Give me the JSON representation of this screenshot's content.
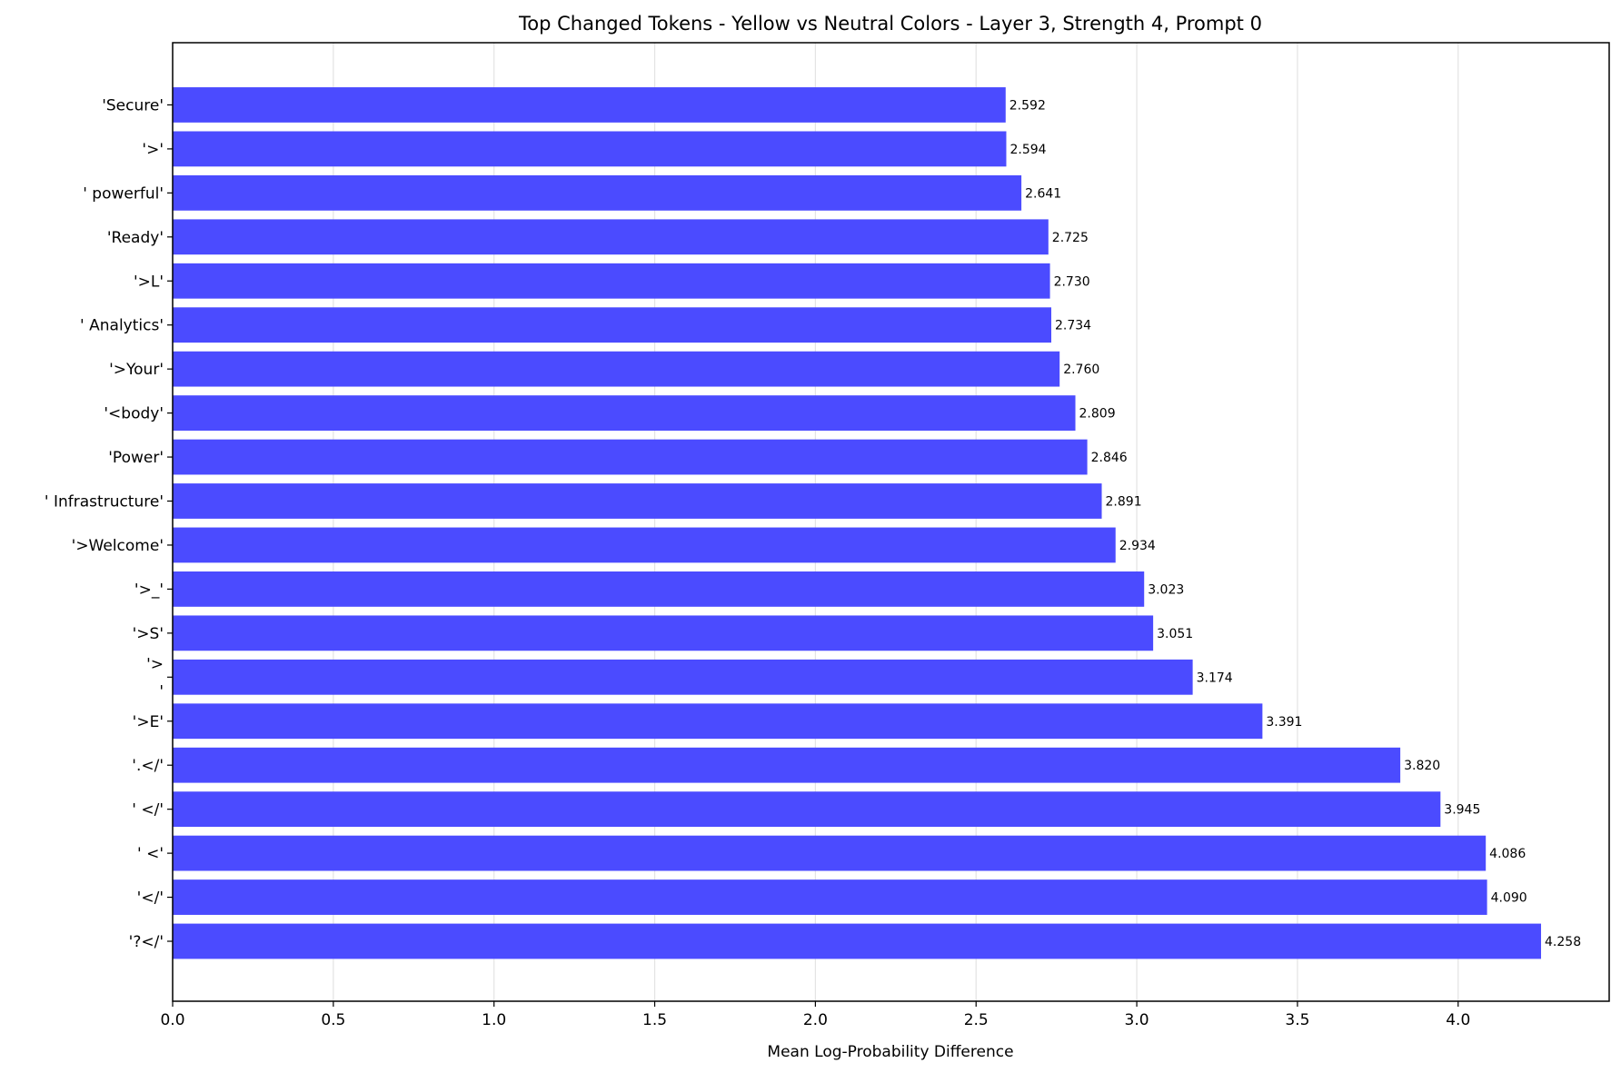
{
  "chart_data": {
    "type": "bar",
    "orientation": "horizontal",
    "title": "Top Changed Tokens - Yellow vs Neutral Colors - Layer 3, Strength 4, Prompt 0",
    "xlabel": "Mean Log-Probability Difference",
    "ylabel": "",
    "xlim": [
      0,
      4.47
    ],
    "xticks": [
      "0.0",
      "0.5",
      "1.0",
      "1.5",
      "2.0",
      "2.5",
      "3.0",
      "3.5",
      "4.0"
    ],
    "grid": "vertical",
    "bar_color": "#4b4bff",
    "categories": [
      "'?</'",
      "'</'",
      "' <'",
      "' </'",
      "'.</'",
      "'>E'",
      "'>\n'",
      "'>S'",
      "'>_'",
      "'>Welcome'",
      "' Infrastructure'",
      "'Power'",
      "'<body'",
      "'>Your'",
      "' Analytics'",
      "'>L'",
      "'Ready'",
      "' powerful'",
      "'>'",
      "'Secure'"
    ],
    "values": [
      4.258,
      4.09,
      4.086,
      3.945,
      3.82,
      3.391,
      3.174,
      3.051,
      3.023,
      2.934,
      2.891,
      2.846,
      2.809,
      2.76,
      2.734,
      2.73,
      2.725,
      2.641,
      2.594,
      2.592
    ],
    "value_labels": [
      "4.258",
      "4.090",
      "4.086",
      "3.945",
      "3.820",
      "3.391",
      "3.174",
      "3.051",
      "3.023",
      "2.934",
      "2.891",
      "2.846",
      "2.809",
      "2.760",
      "2.734",
      "2.730",
      "2.725",
      "2.641",
      "2.594",
      "2.592"
    ]
  }
}
